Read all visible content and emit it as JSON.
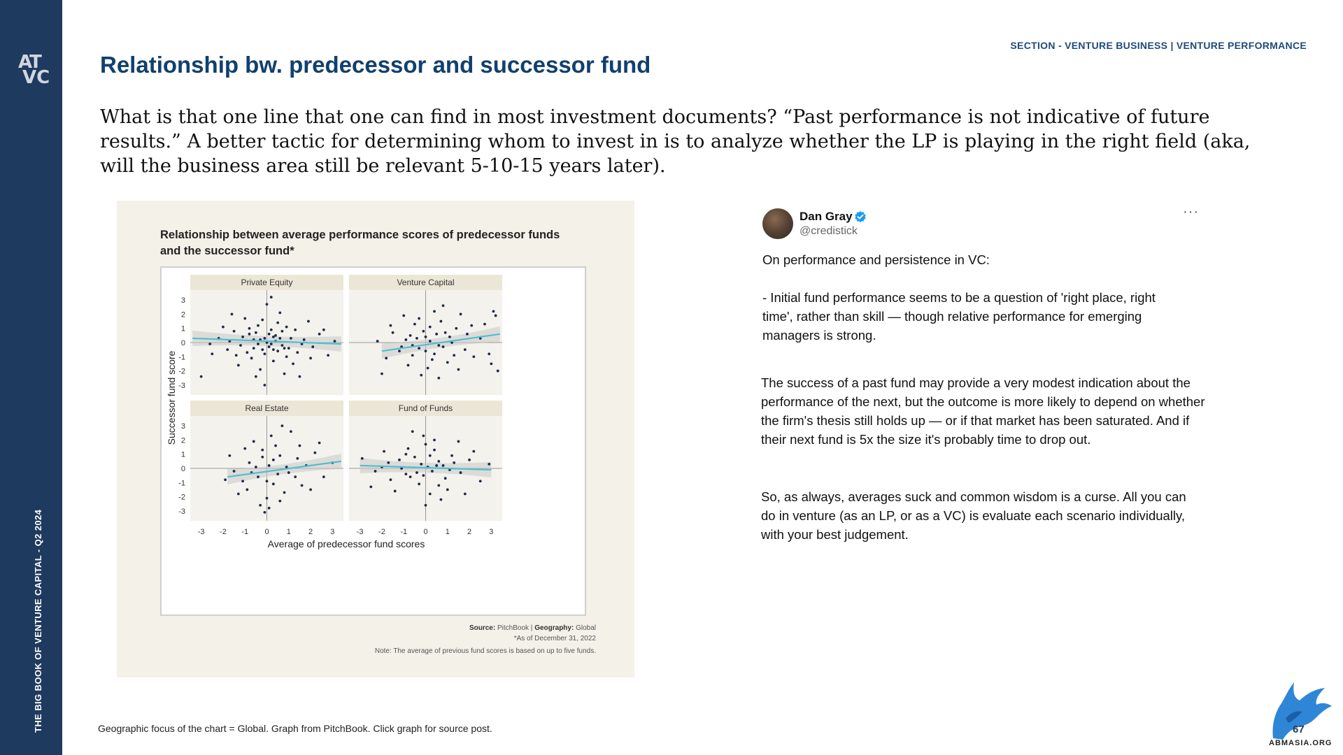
{
  "sidebar": {
    "logo_text_top": "AT",
    "logo_text_bottom": "VC",
    "vertical_label": "THE BIG BOOK OF VENTURE CAPITAL - Q2 2024"
  },
  "header": {
    "section_label": "SECTION - VENTURE BUSINESS | VENTURE PERFORMANCE",
    "title": "Relationship bw. predecessor and successor fund"
  },
  "intro": "What is that one line that one can find in most investment documents? “Past performance is not indicative of future results.” A better tactic for determining whom to invest in is to analyze whether the LP is playing in the right field (aka, will the business area still be relevant 5-10-15 years later).",
  "chart_data": {
    "type": "scatter",
    "title": "Relationship between average performance scores of predecessor funds and the successor fund*",
    "xlabel": "Average of predecessor fund scores",
    "ylabel": "Successor fund score",
    "xlim": [
      -3.5,
      3.5
    ],
    "ylim": [
      -3.5,
      3.5
    ],
    "x_ticks": [
      "-3",
      "-2",
      "-1",
      "0",
      "1",
      "2",
      "3"
    ],
    "y_ticks": [
      "3",
      "2",
      "1",
      "0",
      "-1",
      "-2",
      "-3"
    ],
    "grid": false,
    "panels": [
      {
        "name": "Private Equity",
        "trend": {
          "x": [
            -3.4,
            3.4
          ],
          "y": [
            0.3,
            -0.1
          ]
        },
        "points": [
          [
            -0.3,
            0.2
          ],
          [
            0.1,
            -0.3
          ],
          [
            0.4,
            0.5
          ],
          [
            -0.6,
            -0.4
          ],
          [
            0.2,
            0.9
          ],
          [
            -0.1,
            -0.8
          ],
          [
            0.7,
            -0.2
          ],
          [
            -0.8,
            0.6
          ],
          [
            0.5,
            -0.6
          ],
          [
            -0.4,
            1.2
          ],
          [
            1.1,
            0.3
          ],
          [
            -1.2,
            -0.2
          ],
          [
            0.3,
            -1.3
          ],
          [
            -0.2,
            1.6
          ],
          [
            1.4,
            -0.7
          ],
          [
            -1.5,
            0.8
          ],
          [
            0.9,
            1.1
          ],
          [
            -0.7,
            -1.1
          ],
          [
            1.7,
            0.2
          ],
          [
            -1.8,
            -0.5
          ],
          [
            0.6,
            2.1
          ],
          [
            -0.3,
            -1.9
          ],
          [
            2.1,
            -0.3
          ],
          [
            -2.2,
            0.3
          ],
          [
            1.2,
            -1.5
          ],
          [
            -1.0,
            1.7
          ],
          [
            2.4,
            0.6
          ],
          [
            -0.5,
            -2.4
          ],
          [
            0.0,
            2.7
          ],
          [
            2.8,
            -0.9
          ],
          [
            -2.6,
            -0.1
          ],
          [
            0.8,
            -2.2
          ],
          [
            -1.6,
            2.0
          ],
          [
            1.9,
            1.5
          ],
          [
            -3.0,
            -2.4
          ],
          [
            3.1,
            0.1
          ],
          [
            -0.1,
            -3.0
          ],
          [
            0.2,
            3.2
          ],
          [
            1.5,
            -2.4
          ],
          [
            -1.3,
            -1.6
          ],
          [
            0.4,
            0.1
          ],
          [
            -0.4,
            -0.1
          ],
          [
            0.6,
            0.3
          ],
          [
            -0.6,
            0.2
          ],
          [
            0.1,
            0.6
          ],
          [
            0.3,
            -0.5
          ],
          [
            -0.9,
            -0.7
          ],
          [
            1.0,
            -0.4
          ],
          [
            -1.1,
            0.4
          ],
          [
            0.7,
            0.8
          ],
          [
            -0.2,
            -0.5
          ],
          [
            0.5,
            1.4
          ],
          [
            1.3,
            0.9
          ],
          [
            -1.4,
            -0.9
          ],
          [
            0.9,
            -1.0
          ],
          [
            -0.8,
            1.0
          ],
          [
            2.0,
            -1.1
          ],
          [
            -2.0,
            1.1
          ],
          [
            1.6,
            -0.1
          ],
          [
            -1.7,
            0.1
          ],
          [
            2.6,
            0.9
          ],
          [
            -2.5,
            -0.8
          ],
          [
            0.0,
            0.0
          ],
          [
            0.2,
            -0.1
          ],
          [
            -0.1,
            0.3
          ],
          [
            0.3,
            0.4
          ],
          [
            -0.5,
            0.7
          ],
          [
            0.8,
            -0.4
          ]
        ]
      },
      {
        "name": "Venture Capital",
        "trend": {
          "x": [
            -2.0,
            3.4
          ],
          "y": [
            -0.6,
            0.6
          ]
        },
        "points": [
          [
            -0.3,
            -0.4
          ],
          [
            0.2,
            0.1
          ],
          [
            0.5,
            0.6
          ],
          [
            -0.6,
            -0.9
          ],
          [
            0.8,
            -0.3
          ],
          [
            -0.1,
            0.8
          ],
          [
            1.1,
            0.4
          ],
          [
            -0.9,
            0.2
          ],
          [
            0.3,
            -1.2
          ],
          [
            1.4,
            1.0
          ],
          [
            -1.2,
            -0.6
          ],
          [
            0.7,
            1.5
          ],
          [
            -0.5,
            1.3
          ],
          [
            1.8,
            -0.5
          ],
          [
            -1.5,
            0.7
          ],
          [
            0.1,
            -1.8
          ],
          [
            2.1,
            1.2
          ],
          [
            -0.8,
            -1.6
          ],
          [
            1.0,
            -1.4
          ],
          [
            2.5,
            0.3
          ],
          [
            -1.8,
            -1.1
          ],
          [
            0.4,
            2.2
          ],
          [
            -0.2,
            -2.3
          ],
          [
            1.6,
            2.0
          ],
          [
            2.9,
            -0.8
          ],
          [
            3.2,
            1.9
          ],
          [
            3.0,
            -1.5
          ],
          [
            3.3,
            -2.0
          ],
          [
            -2.0,
            -2.2
          ],
          [
            -1.0,
            1.9
          ],
          [
            0.6,
            -2.5
          ],
          [
            1.3,
            -0.9
          ],
          [
            -0.4,
            0.3
          ],
          [
            0.0,
            -0.6
          ],
          [
            0.9,
            0.7
          ],
          [
            -0.7,
            0.5
          ],
          [
            0.2,
            1.1
          ],
          [
            1.2,
            0.0
          ],
          [
            -1.1,
            -0.3
          ],
          [
            0.6,
            -0.2
          ],
          [
            2.2,
            -1.0
          ],
          [
            1.9,
            0.6
          ],
          [
            -0.3,
            1.7
          ],
          [
            0.8,
            2.6
          ],
          [
            -1.6,
            1.2
          ],
          [
            2.7,
            1.3
          ],
          [
            0.0,
            0.4
          ],
          [
            0.4,
            -0.8
          ],
          [
            -0.6,
            -0.2
          ],
          [
            1.5,
            -1.9
          ],
          [
            3.1,
            2.2
          ],
          [
            -2.2,
            0.1
          ]
        ]
      },
      {
        "name": "Real Estate",
        "trend": {
          "x": [
            -1.8,
            3.4
          ],
          "y": [
            -0.6,
            0.5
          ]
        },
        "points": [
          [
            0.1,
            0.2
          ],
          [
            -0.4,
            -0.6
          ],
          [
            0.6,
            0.9
          ],
          [
            -0.8,
            0.4
          ],
          [
            0.3,
            -1.1
          ],
          [
            1.0,
            -0.3
          ],
          [
            -0.2,
            1.3
          ],
          [
            1.4,
            0.7
          ],
          [
            -1.1,
            -0.9
          ],
          [
            0.8,
            -1.7
          ],
          [
            -0.6,
            1.9
          ],
          [
            1.8,
            0.2
          ],
          [
            -1.5,
            -0.2
          ],
          [
            0.2,
            2.3
          ],
          [
            0.0,
            -2.1
          ],
          [
            2.2,
            1.1
          ],
          [
            -0.3,
            -2.6
          ],
          [
            1.1,
            2.6
          ],
          [
            0.5,
            -0.4
          ],
          [
            -0.9,
            -1.5
          ],
          [
            2.6,
            -0.6
          ],
          [
            -1.7,
            0.9
          ],
          [
            0.4,
            1.6
          ],
          [
            1.6,
            -1.2
          ],
          [
            -0.1,
            -3.1
          ],
          [
            0.1,
            -2.8
          ],
          [
            0.7,
            3.0
          ],
          [
            3.0,
            0.4
          ],
          [
            -1.3,
            -1.8
          ],
          [
            0.9,
            0.1
          ],
          [
            -0.5,
            0.1
          ],
          [
            1.3,
            -0.6
          ],
          [
            -0.7,
            -0.3
          ],
          [
            0.3,
            0.6
          ],
          [
            2.0,
            -1.5
          ],
          [
            -1.9,
            -0.8
          ],
          [
            0.6,
            -2.3
          ],
          [
            1.5,
            1.6
          ],
          [
            -0.2,
            0.8
          ],
          [
            0.0,
            -0.9
          ],
          [
            -1.0,
            1.4
          ],
          [
            2.4,
            1.8
          ]
        ]
      },
      {
        "name": "Fund of Funds",
        "trend": {
          "x": [
            -3.0,
            3.0
          ],
          "y": [
            0.2,
            -0.1
          ]
        },
        "points": [
          [
            -0.2,
            0.3
          ],
          [
            0.3,
            -0.2
          ],
          [
            -0.5,
            0.8
          ],
          [
            0.6,
            0.5
          ],
          [
            -0.9,
            -0.4
          ],
          [
            0.9,
            -0.7
          ],
          [
            -1.2,
            0.6
          ],
          [
            1.2,
            0.9
          ],
          [
            -0.3,
            -1.1
          ],
          [
            0.4,
            1.3
          ],
          [
            -1.6,
            -0.8
          ],
          [
            1.6,
            -0.3
          ],
          [
            0.0,
            1.7
          ],
          [
            -0.8,
            1.4
          ],
          [
            1.0,
            -1.5
          ],
          [
            -2.0,
            0.1
          ],
          [
            2.0,
            0.6
          ],
          [
            -0.1,
            2.3
          ],
          [
            0.2,
            -1.8
          ],
          [
            -1.4,
            -1.6
          ],
          [
            1.5,
            1.9
          ],
          [
            -2.5,
            -1.3
          ],
          [
            2.5,
            -0.9
          ],
          [
            -0.6,
            2.6
          ],
          [
            0.7,
            -2.2
          ],
          [
            -2.9,
            0.7
          ],
          [
            2.9,
            0.3
          ],
          [
            0.1,
            0.1
          ],
          [
            -0.4,
            -0.3
          ],
          [
            0.5,
            0.2
          ],
          [
            1.8,
            -1.8
          ],
          [
            -1.9,
            1.2
          ],
          [
            0.8,
            0.2
          ],
          [
            -0.7,
            -0.6
          ],
          [
            1.3,
            0.4
          ],
          [
            -1.1,
            0.0
          ],
          [
            0.2,
            0.9
          ],
          [
            -0.1,
            -0.5
          ],
          [
            2.2,
            1.2
          ],
          [
            -2.3,
            -0.2
          ],
          [
            0.6,
            -1.2
          ],
          [
            -0.9,
            1.0
          ],
          [
            1.1,
            -0.1
          ],
          [
            -1.7,
            0.4
          ],
          [
            0.0,
            -2.6
          ],
          [
            0.4,
            2.0
          ]
        ]
      }
    ]
  },
  "chart_source": {
    "source_label": "Source:",
    "source_value": "PitchBook",
    "separator": "|",
    "geography_label": "Geography:",
    "geography_value": "Global",
    "as_of": "*As of December 31, 2022",
    "note": "Note: The average of previous fund scores is based on up to five funds."
  },
  "tweet": {
    "author": "Dan Gray",
    "handle": "@credistick",
    "more_label": "···",
    "p1": "On performance and persistence in VC:",
    "p2": "- Initial fund performance seems to be a question of 'right place, right time', rather than skill — though relative performance for emerging managers is strong.",
    "p3": "The success of a past fund may provide a very modest indication about the performance of the next, but the outcome is more likely to depend on whether the firm's thesis still holds up — or if that market has been saturated. And if their next fund is 5x the size it's probably time to drop out.",
    "p4": "So, as always, averages suck and common wisdom is a curse. All you can do in venture (as an LP, or as a VC) is evaluate each scenario individually, with your best judgement."
  },
  "footnote": "Geographic focus of the chart = Global. Graph from PitchBook. Click graph for source post.",
  "footer": {
    "page_number": "67",
    "brand": "ABMASIA.ORG"
  },
  "colors": {
    "sidebar": "#1f3a5f",
    "title": "#11406e",
    "trend_line": "#4fbfcf",
    "points": "#1c2a4a",
    "verified": "#1d9bf0"
  }
}
